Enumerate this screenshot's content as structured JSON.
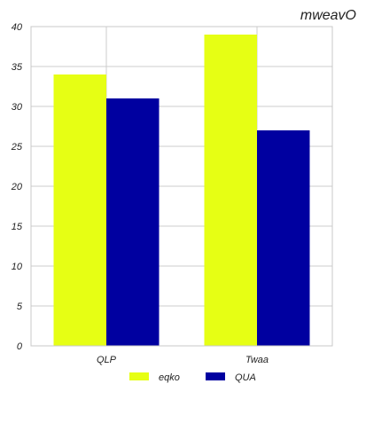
{
  "chart_data": {
    "type": "bar",
    "title": "mweavO",
    "xlabel": "",
    "ylabel": "",
    "categories": [
      "QLP",
      "Twaa"
    ],
    "series": [
      {
        "name": "eqko",
        "values": [
          34,
          39
        ],
        "color": "#e6ff14"
      },
      {
        "name": "QUA",
        "values": [
          31,
          27
        ],
        "color": "#0000a0"
      }
    ],
    "ylim": [
      0,
      40
    ],
    "yticks": [
      0,
      5,
      10,
      15,
      20,
      25,
      30,
      35,
      40
    ],
    "grid": true,
    "legend_position": "bottom-center"
  }
}
